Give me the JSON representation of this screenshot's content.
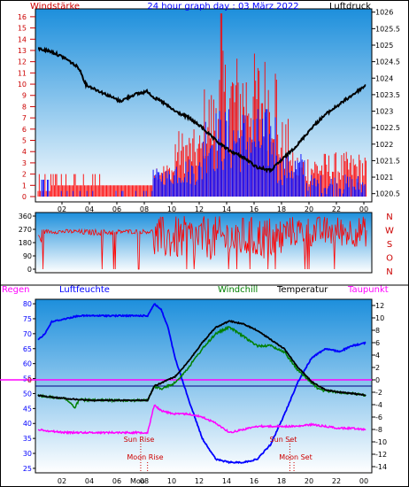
{
  "header": {
    "left_label": "Windstärke",
    "title": "24 hour graph day : 03 März 2022",
    "right_label": "Luftdruck"
  },
  "labels": {
    "rain": "Regen",
    "humidity": "Luftfeuchte",
    "windchill": "Windchill",
    "temperature": "Temperatur",
    "dewpoint": "Taupunkt",
    "sun_rise": "Sun Rise",
    "sun_set": "Sun Set",
    "moon_rise": "Moon Rise",
    "moon_set": "Moon Set",
    "moon_tick": "Moo",
    "zero": "0"
  },
  "colors": {
    "panel_top": "#1d8fdc",
    "panel_bottom": "#ffffff",
    "wind_gust": "#ff0000",
    "wind_avg": "#0000ff",
    "pressure": "#000000",
    "direction": "#ff0000",
    "humidity": "#0000ff",
    "windchill": "#008000",
    "temperature": "#000000",
    "dewpoint": "#ff00ff",
    "axis_red": "#cc0000",
    "zero_line": "#ff00ff",
    "reference_line": "#000080"
  },
  "chart_data": [
    {
      "type": "bar",
      "id": "wind_pressure",
      "title": "24 hour graph day : 03 März 2022",
      "ylabel_left": "Windstärke",
      "ylabel_right": "Luftdruck",
      "x_ticks": [
        "02",
        "04",
        "06",
        "08",
        "10",
        "12",
        "14",
        "16",
        "18",
        "20",
        "22",
        "00"
      ],
      "y_left_ticks": [
        "0",
        "1",
        "2",
        "3",
        "4",
        "5",
        "6",
        "7",
        "8",
        "9",
        "10",
        "11",
        "12",
        "13",
        "14",
        "15",
        "16"
      ],
      "y_right_ticks": [
        "1020.5",
        "1021",
        "1021.5",
        "1022",
        "1022.5",
        "1023",
        "1023.5",
        "1024",
        "1024.5",
        "1025",
        "1025.5",
        "1026"
      ],
      "ylim_left": [
        0,
        16.7
      ],
      "ylim_right": [
        1020.25,
        1026.1
      ],
      "pressure": {
        "x": [
          0,
          1,
          2,
          3,
          3.5,
          4,
          5,
          6,
          7,
          8,
          8.5,
          9,
          10,
          11,
          12,
          13,
          14,
          15,
          16,
          17,
          18,
          19,
          20,
          21,
          22,
          23,
          24
        ],
        "y": [
          1024.9,
          1024.8,
          1024.6,
          1024.3,
          1023.8,
          1023.7,
          1023.5,
          1023.3,
          1023.5,
          1023.6,
          1023.4,
          1023.3,
          1023.0,
          1022.8,
          1022.5,
          1022.1,
          1021.8,
          1021.6,
          1021.3,
          1021.2,
          1021.6,
          1022.0,
          1022.5,
          1022.9,
          1023.2,
          1023.5,
          1023.8
        ]
      }
    },
    {
      "type": "line",
      "id": "wind_direction",
      "y_left_ticks": [
        "0",
        "90",
        "180",
        "270",
        "360"
      ],
      "y_right_ticks": [
        "N",
        "W",
        "S",
        "O",
        "N"
      ],
      "ylim": [
        0,
        360
      ]
    },
    {
      "type": "line",
      "id": "temp_humidity",
      "y_left_ticks": [
        "25",
        "30",
        "35",
        "40",
        "45",
        "50",
        "55",
        "60",
        "65",
        "70",
        "75",
        "80"
      ],
      "y_right_ticks": [
        "-14",
        "-12",
        "-10",
        "-8",
        "-6",
        "-4",
        "-2",
        "0",
        "2",
        "4",
        "6",
        "8",
        "10",
        "12"
      ],
      "ylim_left": [
        23.5,
        81.5
      ],
      "ylim_right": [
        -15,
        13
      ],
      "x_ticks": [
        "02",
        "04",
        "06",
        "08",
        "10",
        "12",
        "14",
        "16",
        "18",
        "20",
        "22",
        "00"
      ],
      "humidity": {
        "x": [
          0,
          0.5,
          1,
          2,
          3,
          4,
          5,
          6,
          7,
          8,
          8.5,
          9,
          9.5,
          10,
          11,
          12,
          13,
          14,
          15,
          16,
          17,
          18,
          19,
          20,
          21,
          22,
          23,
          24
        ],
        "y": [
          68,
          70,
          74,
          75,
          76,
          76,
          76,
          76,
          76,
          76,
          80,
          78,
          72,
          62,
          48,
          35,
          28,
          27,
          27,
          28,
          33,
          43,
          54,
          62,
          65,
          64,
          66,
          67
        ]
      },
      "temperature": {
        "x": [
          0,
          1,
          2,
          3,
          4,
          5,
          6,
          7,
          8,
          8.5,
          9,
          10,
          11,
          12,
          13,
          14,
          15,
          16,
          17,
          18,
          19,
          20,
          21,
          22,
          23,
          24
        ],
        "y": [
          -2.5,
          -2.8,
          -3.0,
          -3.2,
          -3.3,
          -3.3,
          -3.3,
          -3.3,
          -3.3,
          -1.0,
          -0.5,
          0.5,
          3.0,
          6.0,
          8.5,
          9.5,
          9.0,
          8.0,
          6.5,
          5.0,
          2.0,
          -0.3,
          -1.6,
          -2.0,
          -2.2,
          -2.5
        ]
      },
      "windchill": {
        "x": [
          0,
          1,
          2,
          2.7,
          3,
          4,
          5,
          6,
          7,
          8,
          8.5,
          9,
          10,
          11,
          12,
          13,
          14,
          15,
          16,
          17,
          18,
          19,
          20,
          20.5,
          21,
          22,
          23,
          24
        ],
        "y": [
          -2.5,
          -2.8,
          -3.0,
          -4.5,
          -3.2,
          -3.3,
          -3.3,
          -3.3,
          -3.3,
          -3.3,
          -1.0,
          -1.5,
          -0.5,
          2.0,
          5.0,
          7.5,
          8.5,
          7.0,
          5.5,
          5.5,
          4.5,
          1.5,
          -0.5,
          -1.5,
          -1.8,
          -2.0,
          -2.2,
          -2.5
        ]
      },
      "dewpoint": {
        "x": [
          0,
          1,
          2,
          3,
          4,
          5,
          6,
          7,
          8,
          8.5,
          9,
          10,
          11,
          12,
          13,
          14,
          15,
          16,
          17,
          18,
          19,
          20,
          21,
          22,
          23,
          24
        ],
        "y": [
          -8.0,
          -8.3,
          -8.5,
          -8.5,
          -8.5,
          -8.5,
          -8.5,
          -8.5,
          -8.5,
          -4.0,
          -5.0,
          -5.5,
          -5.5,
          -6.0,
          -7.0,
          -8.5,
          -8.0,
          -7.5,
          -7.5,
          -7.5,
          -7.5,
          -7.2,
          -7.5,
          -7.8,
          -7.8,
          -8.0
        ]
      },
      "events": {
        "sun_rise_hour": 7.5,
        "sun_set_hour": 18.4,
        "moon_rise_hour": 8.0,
        "moon_set_hour": 18.7
      }
    }
  ]
}
